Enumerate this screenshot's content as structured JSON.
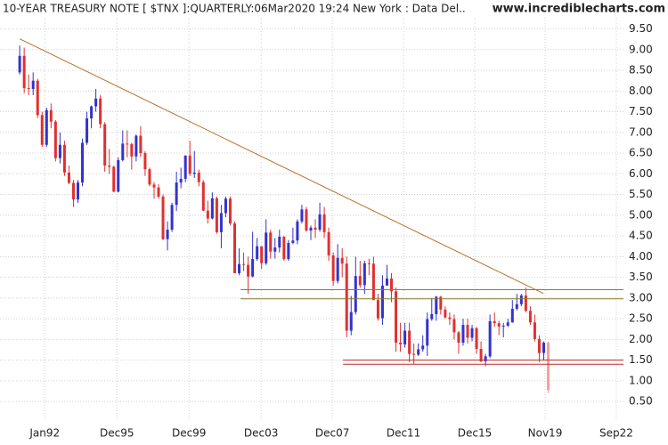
{
  "chart_data": {
    "type": "candlestick",
    "title": "10-YEAR TREASURY NOTE [ $TNX ]:QUARTERLY:06Mar2020 19:24 New York : Data Del..",
    "source": "www.incrediblecharts.com",
    "up_color": "#3333cc",
    "down_color": "#e03030",
    "last_color": "#f4a0a0",
    "grid": true,
    "xlim": [
      -4.4,
      134.8
    ],
    "xticks": [
      {
        "value": 5.6,
        "label": "Jan92"
      },
      {
        "value": 21.7,
        "label": "Dec95"
      },
      {
        "value": 37.8,
        "label": "Dec99"
      },
      {
        "value": 53.9,
        "label": "Dec03"
      },
      {
        "value": 69.8,
        "label": "Dec07"
      },
      {
        "value": 85.7,
        "label": "Dec11"
      },
      {
        "value": 101.6,
        "label": "Dec15"
      },
      {
        "value": 117.3,
        "label": "Nov19"
      },
      {
        "value": 133.2,
        "label": "Sep22"
      }
    ],
    "ylim": [
      0.05,
      10.2
    ],
    "yticks": [
      {
        "value": 0.5,
        "label": "0.50"
      },
      {
        "value": 1,
        "label": "1.00"
      },
      {
        "value": 1.5,
        "label": "1.50"
      },
      {
        "value": 2,
        "label": "2.00"
      },
      {
        "value": 2.5,
        "label": "2.50"
      },
      {
        "value": 3,
        "label": "3.00"
      },
      {
        "value": 3.5,
        "label": "3.50"
      },
      {
        "value": 4,
        "label": "4.00"
      },
      {
        "value": 4.5,
        "label": "4.50"
      },
      {
        "value": 5,
        "label": "5.00"
      },
      {
        "value": 5.5,
        "label": "5.50"
      },
      {
        "value": 6,
        "label": "6.00"
      },
      {
        "value": 6.5,
        "label": "6.50"
      },
      {
        "value": 7,
        "label": "7.00"
      },
      {
        "value": 7.5,
        "label": "7.50"
      },
      {
        "value": 8,
        "label": "8.00"
      },
      {
        "value": 8.5,
        "label": "8.50"
      },
      {
        "value": 9,
        "label": "9.00"
      },
      {
        "value": 9.5,
        "label": "9.50"
      }
    ],
    "candles": [
      [
        8.45,
        9.1,
        8.4,
        8.85
      ],
      [
        8.85,
        9.05,
        7.95,
        8.07
      ],
      [
        8.07,
        8.4,
        7.9,
        8.05
      ],
      [
        8.05,
        8.45,
        7.9,
        8.25
      ],
      [
        8.25,
        8.3,
        7.35,
        7.42
      ],
      [
        7.42,
        7.5,
        6.65,
        6.7
      ],
      [
        6.7,
        7.6,
        6.65,
        7.54
      ],
      [
        7.54,
        7.7,
        7.1,
        7.26
      ],
      [
        7.26,
        7.3,
        6.3,
        6.38
      ],
      [
        6.38,
        7.0,
        6.25,
        6.7
      ],
      [
        6.7,
        6.8,
        5.95,
        6.03
      ],
      [
        6.03,
        6.2,
        5.75,
        5.78
      ],
      [
        5.78,
        5.85,
        5.2,
        5.38
      ],
      [
        5.38,
        5.85,
        5.3,
        5.79
      ],
      [
        5.79,
        6.85,
        5.7,
        6.75
      ],
      [
        6.75,
        7.5,
        6.7,
        7.34
      ],
      [
        7.34,
        7.65,
        7.1,
        7.63
      ],
      [
        7.63,
        8.05,
        7.5,
        7.82
      ],
      [
        7.82,
        7.9,
        7.1,
        7.2
      ],
      [
        7.2,
        7.25,
        6.05,
        6.2
      ],
      [
        6.2,
        6.6,
        6.0,
        6.17
      ],
      [
        6.17,
        6.2,
        5.55,
        5.57
      ],
      [
        5.57,
        6.4,
        5.55,
        6.33
      ],
      [
        6.33,
        7.05,
        6.3,
        6.73
      ],
      [
        6.73,
        7.05,
        6.4,
        6.72
      ],
      [
        6.72,
        6.75,
        6.1,
        6.42
      ],
      [
        6.42,
        6.95,
        6.3,
        6.92
      ],
      [
        6.92,
        7.15,
        6.4,
        6.5
      ],
      [
        6.5,
        6.55,
        5.95,
        6.11
      ],
      [
        6.11,
        6.15,
        5.7,
        5.74
      ],
      [
        5.74,
        5.8,
        5.4,
        5.67
      ],
      [
        5.67,
        5.75,
        5.4,
        5.45
      ],
      [
        5.45,
        5.5,
        4.4,
        4.42
      ],
      [
        4.42,
        4.85,
        4.15,
        4.65
      ],
      [
        4.65,
        5.3,
        4.6,
        5.25
      ],
      [
        5.25,
        6.05,
        5.1,
        5.79
      ],
      [
        5.79,
        6.15,
        5.65,
        5.88
      ],
      [
        5.88,
        6.45,
        5.8,
        6.44
      ],
      [
        6.44,
        6.8,
        5.95,
        6.0
      ],
      [
        6.0,
        6.55,
        5.9,
        6.03
      ],
      [
        6.03,
        6.1,
        5.7,
        5.8
      ],
      [
        5.8,
        5.85,
        5.1,
        5.11
      ],
      [
        5.11,
        5.35,
        4.8,
        4.92
      ],
      [
        4.92,
        5.55,
        4.9,
        5.41
      ],
      [
        5.41,
        5.45,
        4.55,
        4.59
      ],
      [
        4.59,
        5.25,
        4.2,
        5.05
      ],
      [
        5.05,
        5.45,
        4.95,
        5.4
      ],
      [
        5.4,
        5.45,
        4.75,
        4.8
      ],
      [
        4.8,
        4.85,
        3.6,
        3.6
      ],
      [
        3.6,
        4.2,
        3.55,
        3.82
      ],
      [
        3.82,
        4.1,
        3.65,
        3.8
      ],
      [
        3.8,
        4.0,
        3.1,
        3.52
      ],
      [
        3.52,
        4.6,
        3.5,
        3.94
      ],
      [
        3.94,
        4.45,
        3.9,
        4.25
      ],
      [
        4.25,
        4.25,
        3.7,
        3.84
      ],
      [
        3.84,
        4.9,
        3.8,
        4.58
      ],
      [
        4.58,
        4.65,
        3.95,
        4.12
      ],
      [
        4.12,
        4.45,
        3.95,
        4.22
      ],
      [
        4.22,
        4.65,
        4.1,
        4.48
      ],
      [
        4.48,
        4.5,
        3.9,
        3.94
      ],
      [
        3.94,
        4.4,
        3.9,
        4.33
      ],
      [
        4.33,
        4.7,
        4.3,
        4.39
      ],
      [
        4.39,
        4.9,
        4.3,
        4.85
      ],
      [
        4.85,
        5.25,
        4.8,
        5.14
      ],
      [
        5.14,
        5.2,
        4.6,
        4.63
      ],
      [
        4.63,
        4.75,
        4.4,
        4.7
      ],
      [
        4.7,
        4.9,
        4.45,
        4.65
      ],
      [
        4.65,
        5.3,
        4.6,
        5.02
      ],
      [
        5.02,
        5.2,
        4.45,
        4.59
      ],
      [
        4.59,
        4.7,
        3.9,
        4.03
      ],
      [
        4.03,
        4.1,
        3.3,
        3.41
      ],
      [
        3.41,
        4.3,
        3.35,
        3.97
      ],
      [
        3.97,
        4.2,
        3.5,
        3.83
      ],
      [
        3.83,
        4.0,
        2.05,
        2.21
      ],
      [
        2.21,
        3.05,
        2.1,
        2.66
      ],
      [
        2.66,
        4.0,
        2.6,
        3.53
      ],
      [
        3.53,
        3.9,
        3.25,
        3.31
      ],
      [
        3.31,
        3.9,
        3.1,
        3.84
      ],
      [
        3.84,
        3.95,
        3.55,
        3.83
      ],
      [
        3.83,
        4.0,
        2.95,
        2.95
      ],
      [
        2.95,
        3.1,
        2.45,
        2.51
      ],
      [
        2.51,
        3.55,
        2.35,
        3.3
      ],
      [
        3.3,
        3.8,
        3.3,
        3.47
      ],
      [
        3.47,
        3.6,
        2.9,
        3.16
      ],
      [
        3.16,
        3.25,
        1.7,
        1.92
      ],
      [
        1.92,
        2.4,
        1.7,
        1.88
      ],
      [
        1.88,
        2.4,
        1.8,
        2.21
      ],
      [
        2.21,
        2.4,
        1.45,
        1.65
      ],
      [
        1.65,
        1.9,
        1.4,
        1.63
      ],
      [
        1.63,
        1.9,
        1.6,
        1.76
      ],
      [
        1.76,
        2.1,
        1.7,
        1.85
      ],
      [
        1.85,
        2.65,
        1.6,
        2.49
      ],
      [
        2.49,
        3.0,
        2.45,
        2.61
      ],
      [
        2.61,
        3.05,
        2.45,
        3.03
      ],
      [
        3.03,
        3.05,
        2.6,
        2.72
      ],
      [
        2.72,
        2.8,
        2.5,
        2.53
      ],
      [
        2.53,
        2.65,
        2.35,
        2.49
      ],
      [
        2.49,
        2.6,
        2.0,
        2.17
      ],
      [
        2.17,
        2.2,
        1.65,
        1.92
      ],
      [
        1.92,
        2.5,
        1.85,
        2.35
      ],
      [
        2.35,
        2.5,
        1.9,
        2.04
      ],
      [
        2.04,
        2.35,
        1.95,
        2.27
      ],
      [
        2.27,
        2.3,
        1.65,
        1.77
      ],
      [
        1.77,
        1.95,
        1.45,
        1.47
      ],
      [
        1.47,
        1.65,
        1.35,
        1.59
      ],
      [
        1.59,
        2.6,
        1.55,
        2.44
      ],
      [
        2.44,
        2.65,
        2.3,
        2.39
      ],
      [
        2.39,
        2.45,
        2.1,
        2.31
      ],
      [
        2.31,
        2.4,
        2.05,
        2.33
      ],
      [
        2.33,
        2.5,
        2.3,
        2.41
      ],
      [
        2.41,
        2.95,
        2.4,
        2.74
      ],
      [
        2.74,
        3.1,
        2.7,
        2.85
      ],
      [
        2.85,
        3.1,
        2.8,
        3.06
      ],
      [
        3.06,
        3.25,
        2.65,
        2.69
      ],
      [
        2.69,
        2.8,
        2.35,
        2.41
      ],
      [
        2.41,
        2.6,
        1.95,
        2.01
      ],
      [
        2.01,
        2.1,
        1.45,
        1.67
      ],
      [
        1.67,
        1.95,
        1.5,
        1.92
      ],
      [
        1.92,
        1.95,
        0.7,
        0.77
      ]
    ],
    "lines": [
      {
        "color": "#b8702a",
        "x": [
          0,
          116.9
        ],
        "y": [
          9.26,
          3.11
        ]
      },
      {
        "color": "#8b7d2a",
        "x": [
          49.3,
          134.8
        ],
        "y": [
          3.2,
          3.2
        ]
      },
      {
        "color": "#8b7d2a",
        "x": [
          49.3,
          134.8
        ],
        "y": [
          2.98,
          2.98
        ]
      },
      {
        "color": "#c02828",
        "x": [
          72.2,
          134.8
        ],
        "y": [
          1.5,
          1.5
        ]
      },
      {
        "color": "#c02828",
        "x": [
          72.2,
          134.8
        ],
        "y": [
          1.4,
          1.4
        ]
      }
    ]
  }
}
